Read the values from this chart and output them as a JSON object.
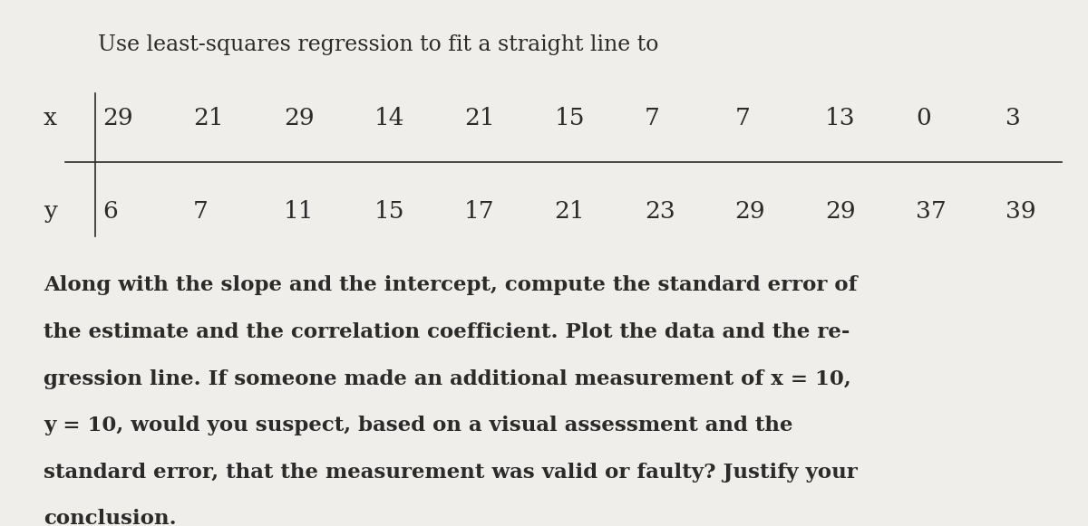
{
  "title_line": "Use least-squares regression to fit a straight line to",
  "x_label": "x",
  "y_label": "y",
  "paragraph_line1": "Along with the slope and the intercept, compute the standard error of",
  "paragraph_line2": "the estimate and the correlation coefficient. Plot the data and the re-",
  "paragraph_line3": "gression line. If someone made an additional measurement of x = 10,",
  "paragraph_line4": "y = 10, would you suspect, based on a visual assessment and the",
  "paragraph_line5": "standard error, that the measurement was valid or faulty? Justify your",
  "paragraph_line6": "conclusion.",
  "bg_color": "#f0eeeb",
  "text_color": "#2b2b2b",
  "title_fontsize": 17,
  "table_fontsize": 19,
  "para_fontsize": 16.5,
  "x_row": [
    "29",
    "21",
    "29",
    "14",
    "21",
    "15",
    "7",
    "7",
    "13",
    "0",
    "3"
  ],
  "y_row": [
    "6",
    "7",
    "11",
    "15",
    "17",
    "21",
    "23",
    "29",
    "29",
    "37",
    "39"
  ]
}
